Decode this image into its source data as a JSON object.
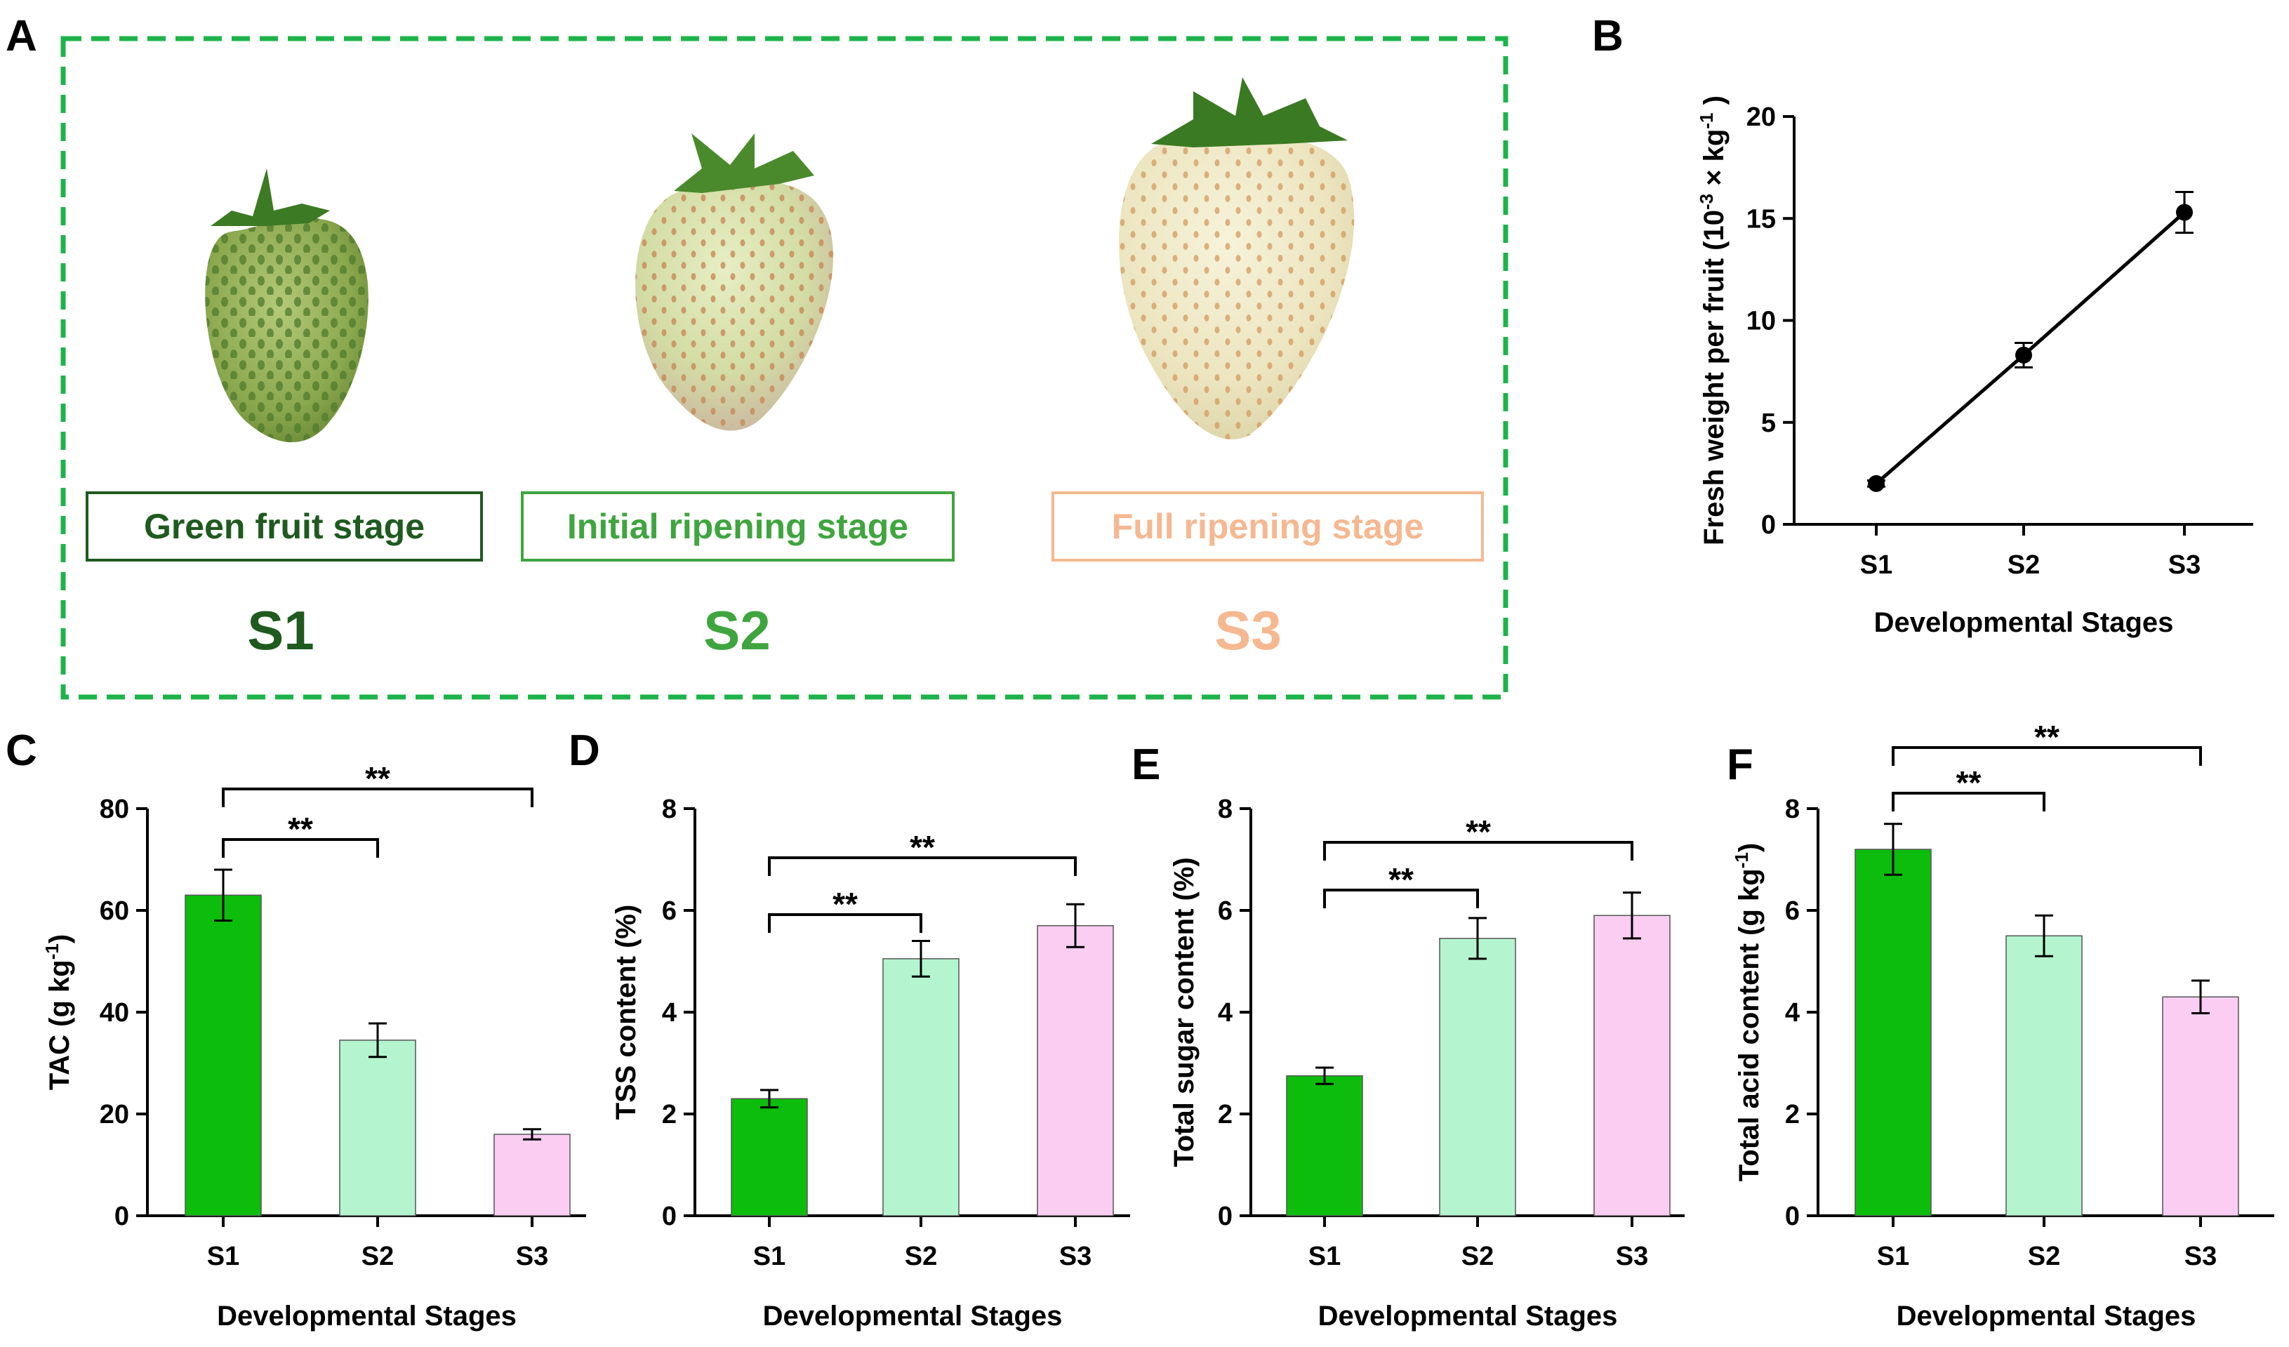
{
  "figure_panels": {
    "A": {
      "letter": "A",
      "stages": [
        {
          "code": "S1",
          "label": "Green fruit stage",
          "color": "#1f5a1f"
        },
        {
          "code": "S2",
          "label": "Initial ripening stage",
          "color": "#3fa53f"
        },
        {
          "code": "S3",
          "label": "Full ripening stage",
          "color": "#f5b890"
        }
      ],
      "border_color": "#1db34a"
    }
  },
  "chart_data": [
    {
      "panel": "B",
      "type": "line",
      "categories": [
        "S1",
        "S2",
        "S3"
      ],
      "values": [
        2.0,
        8.3,
        15.3
      ],
      "errors": [
        0.15,
        0.6,
        1.0
      ],
      "xlabel": "Developmental Stages",
      "ylabel": "Fresh weight per fruit (10⁻³ × kg⁻¹ )",
      "ylim": [
        0,
        20
      ],
      "yticks": [
        "0",
        "5",
        "10",
        "15",
        "20"
      ],
      "color": "#000000"
    },
    {
      "panel": "C",
      "type": "bar",
      "categories": [
        "S1",
        "S2",
        "S3"
      ],
      "values": [
        63,
        34.5,
        16
      ],
      "errors": [
        5,
        3.3,
        1.0
      ],
      "xlabel": "Developmental Stages",
      "ylabel": "TAC (g kg⁻¹)",
      "ylim": [
        0,
        80
      ],
      "yticks": [
        "0",
        "20",
        "40",
        "60",
        "80"
      ],
      "colors": [
        "#0cbd0c",
        "#b4f5cf",
        "#fccdf3"
      ],
      "significance": [
        {
          "from": 0,
          "to": 1,
          "label": "**"
        },
        {
          "from": 0,
          "to": 2,
          "label": "**"
        }
      ]
    },
    {
      "panel": "D",
      "type": "bar",
      "categories": [
        "S1",
        "S2",
        "S3"
      ],
      "values": [
        2.3,
        5.05,
        5.7
      ],
      "errors": [
        0.17,
        0.35,
        0.42
      ],
      "xlabel": "Developmental Stages",
      "ylabel": "TSS content (%)",
      "ylim": [
        0,
        8
      ],
      "yticks": [
        "0",
        "2",
        "4",
        "6",
        "8"
      ],
      "colors": [
        "#0cbd0c",
        "#b4f5cf",
        "#fccdf3"
      ],
      "significance": [
        {
          "from": 0,
          "to": 1,
          "label": "**"
        },
        {
          "from": 0,
          "to": 2,
          "label": "**"
        }
      ]
    },
    {
      "panel": "E",
      "type": "bar",
      "categories": [
        "S1",
        "S2",
        "S3"
      ],
      "values": [
        2.75,
        5.45,
        5.9
      ],
      "errors": [
        0.16,
        0.4,
        0.45
      ],
      "xlabel": "Developmental Stages",
      "ylabel": "Total sugar content (%)",
      "ylim": [
        0,
        8
      ],
      "yticks": [
        "0",
        "2",
        "4",
        "6",
        "8"
      ],
      "colors": [
        "#0cbd0c",
        "#b4f5cf",
        "#fccdf3"
      ],
      "significance": [
        {
          "from": 0,
          "to": 1,
          "label": "**"
        },
        {
          "from": 0,
          "to": 2,
          "label": "**"
        }
      ]
    },
    {
      "panel": "F",
      "type": "bar",
      "categories": [
        "S1",
        "S2",
        "S3"
      ],
      "values": [
        7.2,
        5.5,
        4.3
      ],
      "errors": [
        0.5,
        0.4,
        0.32
      ],
      "xlabel": "Developmental Stages",
      "ylabel": "Total acid content (g kg⁻¹)",
      "ylim": [
        0,
        8
      ],
      "yticks": [
        "0",
        "2",
        "4",
        "6",
        "8"
      ],
      "colors": [
        "#0cbd0c",
        "#b4f5cf",
        "#fccdf3"
      ],
      "significance": [
        {
          "from": 0,
          "to": 1,
          "label": "**"
        },
        {
          "from": 0,
          "to": 2,
          "label": "**"
        }
      ]
    }
  ]
}
